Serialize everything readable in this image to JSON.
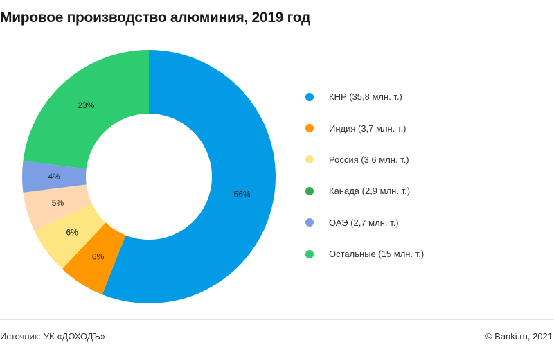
{
  "chart_data": {
    "type": "pie",
    "title": "Мировое производство алюминия, 2019 год",
    "slices": [
      {
        "label": "56%",
        "value": 56,
        "color": "#039be5"
      },
      {
        "label": "6%",
        "value": 6,
        "color": "#ff9800"
      },
      {
        "label": "6%",
        "value": 6,
        "color": "#fde582"
      },
      {
        "label": "5%",
        "value": 5,
        "color": "#fed8b1"
      },
      {
        "label": "4%",
        "value": 4,
        "color": "#7c9ee2"
      },
      {
        "label": "23%",
        "value": 23,
        "color": "#2ecc71"
      }
    ],
    "legend": [
      {
        "label": "КНР (35,8 млн. т.)",
        "color": "#039be5"
      },
      {
        "label": "Индия (3,7 млн. т.)",
        "color": "#ff9800"
      },
      {
        "label": "Россия (3,6 млн. т.)",
        "color": "#fde582"
      },
      {
        "label": "Канада (2,9 млн. т.)",
        "color": "#34a853"
      },
      {
        "label": "ОАЭ (2,7 млн. т.)",
        "color": "#7c9ee2"
      },
      {
        "label": "Остальные (15 млн. т.)",
        "color": "#2ecc71"
      }
    ],
    "legend_position": "right"
  },
  "footer": {
    "source": "Источник: УК «ДОХОДЪ»",
    "copyright": "© Banki.ru, 2021"
  }
}
